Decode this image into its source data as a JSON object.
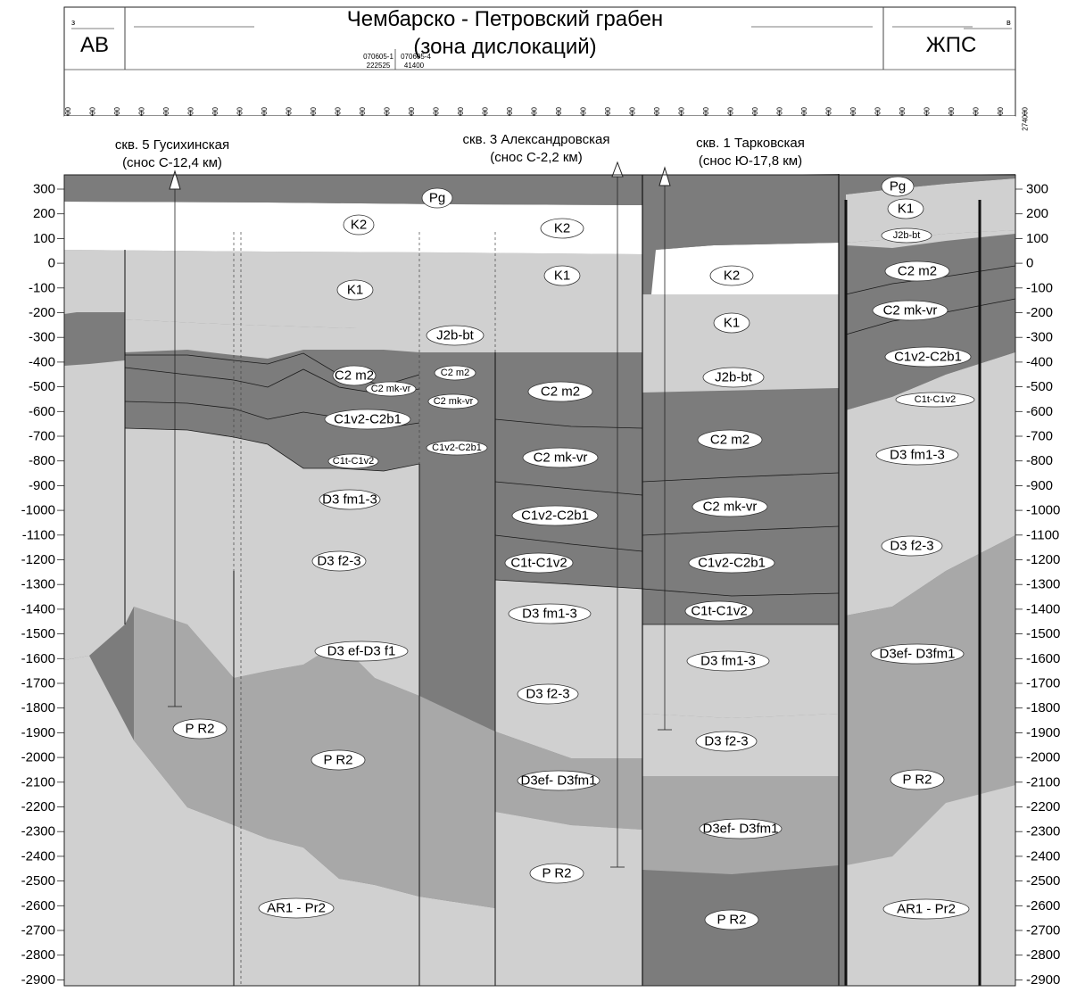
{
  "header": {
    "title_line1": "Чембарско - Петровский грабен",
    "title_line2": "(зона дислокаций)",
    "west_marker": "з",
    "east_marker": "в",
    "left_zone": "АВ",
    "right_zone": "ЖПС",
    "profile_labels": [
      {
        "text": "070605-1"
      },
      {
        "text": "070605-4"
      },
      {
        "text": "222525"
      },
      {
        "text": "41400"
      }
    ]
  },
  "x_ticks": [
    "196000",
    "198000",
    "200000",
    "202000",
    "204000",
    "206000",
    "208000",
    "210000",
    "212000",
    "214000",
    "216000",
    "218000",
    "220000",
    "222000",
    "224000",
    "226000",
    "228000",
    "230000",
    "232000",
    "234000",
    "236000",
    "238000",
    "240000",
    "242000",
    "244000",
    "246000",
    "248000",
    "250000",
    "252000",
    "254000",
    "256000",
    "258000",
    "260000",
    "262000",
    "264000",
    "266000",
    "268000",
    "270000",
    "272000",
    "274000"
  ],
  "y_ticks": [
    "300",
    "200",
    "100",
    "0",
    "-100",
    "-200",
    "-300",
    "-400",
    "-500",
    "-600",
    "-700",
    "-800",
    "-900",
    "-1000",
    "-1100",
    "-1200",
    "-1300",
    "-1400",
    "-1500",
    "-1600",
    "-1700",
    "-1800",
    "-1900",
    "-2000",
    "-2100",
    "-2200",
    "-2300",
    "-2400",
    "-2500",
    "-2600",
    "-2700",
    "-2800",
    "-2900"
  ],
  "wells": [
    {
      "name": "скв. 5 Гусихинская",
      "offset": "(снос С-12,4 км)"
    },
    {
      "name": "скв. 3 Александровская",
      "offset": "(снос С-2,2 км)"
    },
    {
      "name": "скв. 1 Тарковская",
      "offset": "(снос Ю-17,8 км)"
    }
  ],
  "colors": {
    "white": "#ffffff",
    "light": "#d0d0d0",
    "mid": "#a8a8a8",
    "dark": "#7c7c7c",
    "stroke": "#1a1a1a"
  },
  "units": [
    {
      "text": "Pg"
    },
    {
      "text": "K2"
    },
    {
      "text": "K2"
    },
    {
      "text": "K1"
    },
    {
      "text": "K1"
    },
    {
      "text": "J2b-bt"
    },
    {
      "text": "C2 m2"
    },
    {
      "text": "C2 m2"
    },
    {
      "text": "C2 mk-vr"
    },
    {
      "text": "C2 mk-vr"
    },
    {
      "text": "C1v2-C2b1"
    },
    {
      "text": "C1v2-C2b1"
    },
    {
      "text": "C1t-C1v2"
    },
    {
      "text": "D3 fm1-3"
    },
    {
      "text": "D3 f2-3"
    },
    {
      "text": "D3 ef-D3 f1"
    },
    {
      "text": "P R2"
    },
    {
      "text": "P R2"
    },
    {
      "text": "AR1 - Pr2"
    },
    {
      "text": "C2 m2"
    },
    {
      "text": "C2 mk-vr"
    },
    {
      "text": "C1v2-C2b1"
    },
    {
      "text": "C1t-C1v2"
    },
    {
      "text": "D3 fm1-3"
    },
    {
      "text": "D3 f2-3"
    },
    {
      "text": "D3ef- D3fm1"
    },
    {
      "text": "P R2"
    },
    {
      "text": "K2"
    },
    {
      "text": "K1"
    },
    {
      "text": "J2b-bt"
    },
    {
      "text": "C2 m2"
    },
    {
      "text": "C2 mk-vr"
    },
    {
      "text": "C1v2-C2b1"
    },
    {
      "text": "C1t-C1v2"
    },
    {
      "text": "D3 fm1-3"
    },
    {
      "text": "D3 f2-3"
    },
    {
      "text": "D3ef- D3fm1"
    },
    {
      "text": "P R2"
    },
    {
      "text": "Pg"
    },
    {
      "text": "K1"
    },
    {
      "text": "J2b-bt"
    },
    {
      "text": "C2 m2"
    },
    {
      "text": "C2 mk-vr"
    },
    {
      "text": "C1v2-C2b1"
    },
    {
      "text": "C1t-C1v2"
    },
    {
      "text": "D3 fm1-3"
    },
    {
      "text": "D3 f2-3"
    },
    {
      "text": "D3ef- D3fm1"
    },
    {
      "text": "P R2"
    },
    {
      "text": "AR1 - Pr2"
    }
  ]
}
